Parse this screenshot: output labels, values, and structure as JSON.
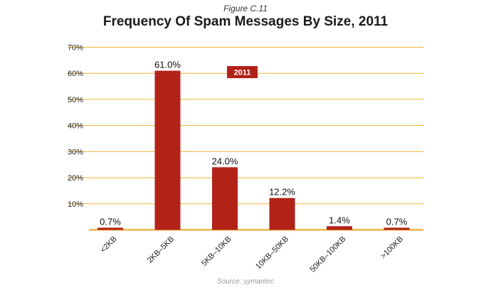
{
  "figure_label": "Figure C.11",
  "source": "Source: symantec",
  "colors": {
    "bar": "#b22217",
    "grid": "#f2b233",
    "axis": "#e8a020"
  },
  "chart_data": {
    "type": "bar",
    "title": "Frequency Of Spam Messages By Size, 2011",
    "categories": [
      "<2KB",
      "2KB–5KB",
      "5KB–10KB",
      "10KB–50KB",
      "50KB–100KB",
      ">100KB"
    ],
    "series": [
      {
        "name": "2011",
        "values": [
          0.7,
          61.0,
          24.0,
          12.2,
          1.4,
          0.7
        ]
      }
    ],
    "data_labels": [
      "0.7%",
      "61.0%",
      "24.0%",
      "12.2%",
      "1.4%",
      "0.7%"
    ],
    "yticks": [
      "10%",
      "20%",
      "30%",
      "40%",
      "50%",
      "60%",
      "70%"
    ],
    "ytick_values": [
      10,
      20,
      30,
      40,
      50,
      60,
      70
    ],
    "ylim": [
      0,
      70
    ],
    "grid": true,
    "legend_position": "top-center"
  }
}
